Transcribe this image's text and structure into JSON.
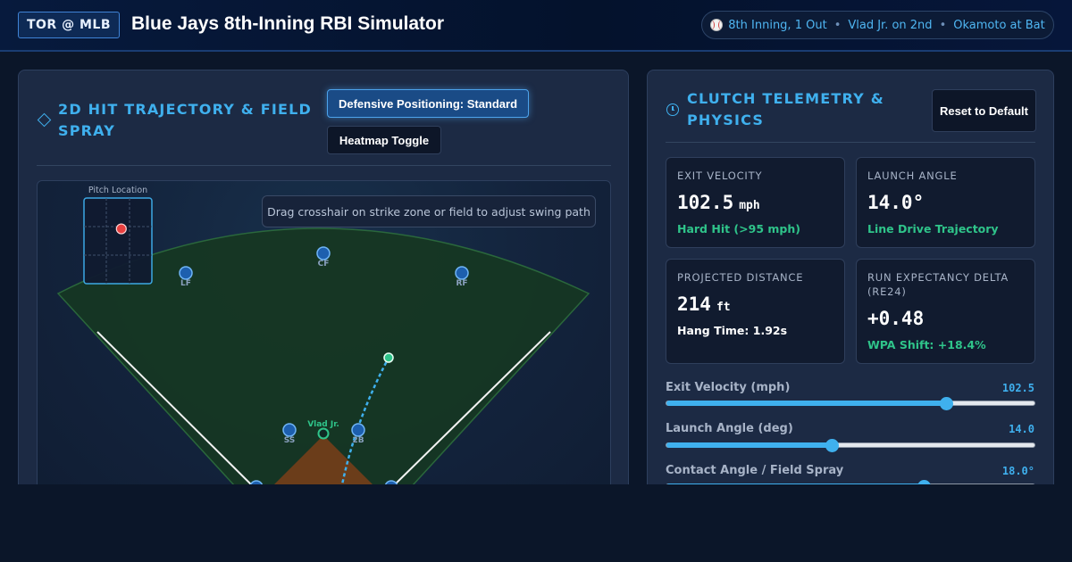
{
  "header": {
    "badge": "TOR @ MLB",
    "title": "Blue Jays 8th-Inning RBI Simulator",
    "situation": [
      "8th Inning, 1 Out",
      "Vlad Jr. on 2nd",
      "Okamoto at Bat"
    ]
  },
  "left_panel": {
    "title": "2D Hit Trajectory & Field Spray",
    "positioning_button": "Defensive Positioning: Standard",
    "heatmap_button": "Heatmap Toggle",
    "hint": "Drag crosshair on strike zone or field to adjust swing path",
    "pitch_location_label": "Pitch Location",
    "pitch_location": {
      "zone_x": 0.55,
      "zone_y": 0.36
    },
    "fielders": [
      "LF",
      "CF",
      "RF",
      "SS",
      "2B"
    ],
    "runner": "Vlad Jr.",
    "colors": {
      "field": "#163723",
      "infield_dirt": "#6b3d1a",
      "trajectory": "#3fb0ee",
      "landing": "#2fc48a",
      "fielder": "#1d5fae",
      "pitch": "#e84040"
    }
  },
  "right_panel": {
    "title": "Clutch Telemetry & Physics",
    "reset_button": "Reset to Default",
    "cards": [
      {
        "label": "Exit Velocity",
        "value": "102.5",
        "unit": "mph",
        "sub": "Hard Hit (>95 mph)",
        "sub_style": "green"
      },
      {
        "label": "Launch Angle",
        "value": "14.0°",
        "unit": "",
        "sub": "Line Drive Trajectory",
        "sub_style": "green"
      },
      {
        "label": "Projected Distance",
        "value": "214",
        "unit": "ft",
        "sub": "Hang Time: 1.92s",
        "sub_style": "white"
      },
      {
        "label": "Run Expectancy Delta (RE24)",
        "value": "+0.48",
        "unit": "",
        "sub": "WPA Shift: +18.4%",
        "sub_style": "green"
      }
    ],
    "sliders": [
      {
        "label": "Exit Velocity (mph)",
        "display": "102.5",
        "fraction": 0.76
      },
      {
        "label": "Launch Angle (deg)",
        "display": "14.0",
        "fraction": 0.45
      },
      {
        "label": "Contact Angle / Field Spray",
        "display": "18.0°",
        "fraction": 0.7
      }
    ]
  }
}
